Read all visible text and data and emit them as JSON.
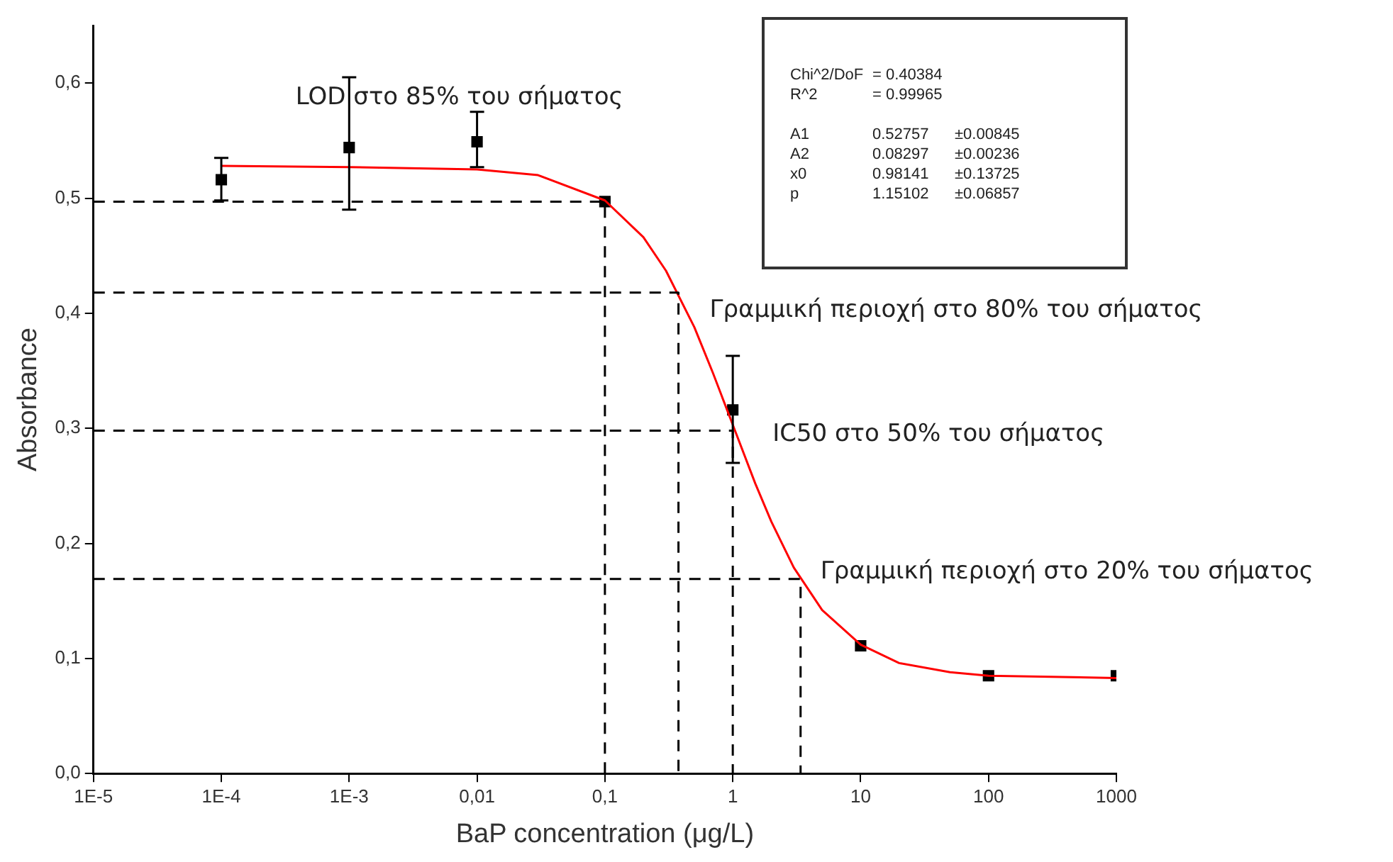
{
  "chart_data": {
    "type": "scatter",
    "xlabel": "BaP concentration (μg/L)",
    "ylabel": "Absorbance",
    "log": "x",
    "grid": false,
    "legend": false,
    "xlim": [
      1e-05,
      1000
    ],
    "ylim": [
      0,
      0.65
    ],
    "xticks": [
      {
        "value": 1e-05,
        "label": "1E-5"
      },
      {
        "value": 0.0001,
        "label": "1E-4"
      },
      {
        "value": 0.001,
        "label": "1E-3"
      },
      {
        "value": 0.01,
        "label": "0,01"
      },
      {
        "value": 0.1,
        "label": "0,1"
      },
      {
        "value": 1,
        "label": "1"
      },
      {
        "value": 10,
        "label": "10"
      },
      {
        "value": 100,
        "label": "100"
      },
      {
        "value": 1000,
        "label": "1000"
      }
    ],
    "yticks": [
      {
        "value": 0,
        "label": "0,0"
      },
      {
        "value": 0.1,
        "label": "0,1"
      },
      {
        "value": 0.2,
        "label": "0,2"
      },
      {
        "value": 0.3,
        "label": "0,3"
      },
      {
        "value": 0.4,
        "label": "0,4"
      },
      {
        "value": 0.5,
        "label": "0,5"
      },
      {
        "value": 0.6,
        "label": "0,6"
      }
    ],
    "series": [
      {
        "type": "line",
        "line_style": "dashed",
        "color": "#000000",
        "x": [
          1e-05,
          0.1,
          0.1
        ],
        "values": [
          0.497,
          0.497,
          0
        ]
      },
      {
        "type": "line",
        "line_style": "dashed",
        "color": "#000000",
        "x": [
          1e-05,
          0.376,
          0.376
        ],
        "values": [
          0.418,
          0.418,
          0
        ]
      },
      {
        "type": "line",
        "line_style": "dashed",
        "color": "#000000",
        "x": [
          1e-05,
          1,
          1
        ],
        "values": [
          0.298,
          0.298,
          0
        ]
      },
      {
        "type": "line",
        "line_style": "dashed",
        "color": "#000000",
        "x": [
          1e-05,
          3.39,
          3.39
        ],
        "values": [
          0.169,
          0.169,
          0
        ]
      },
      {
        "type": "line",
        "line_style": "solid",
        "color": "#ff0000",
        "x": [
          0.0001,
          0.001,
          0.01,
          0.03,
          0.1,
          0.2,
          0.3,
          0.5,
          0.7,
          1,
          1.5,
          2,
          3,
          5,
          10,
          20,
          50,
          100,
          1000
        ],
        "values": [
          0.528,
          0.527,
          0.525,
          0.52,
          0.498,
          0.466,
          0.437,
          0.388,
          0.348,
          0.303,
          0.252,
          0.219,
          0.179,
          0.142,
          0.112,
          0.096,
          0.088,
          0.085,
          0.083
        ]
      },
      {
        "marker": "square",
        "color": "#000000",
        "x": [
          0.0001,
          0.001,
          0.01,
          0.1,
          1,
          10,
          100,
          1000
        ],
        "values": [
          0.516,
          0.544,
          0.549,
          0.497,
          0.316,
          0.111,
          0.085,
          0.085
        ],
        "errors": [
          [
            0.498,
            0.535
          ],
          [
            0.49,
            0.605
          ],
          [
            0.527,
            0.575
          ],
          null,
          [
            0.27,
            0.363
          ],
          null,
          null,
          null
        ]
      }
    ],
    "annotations": [
      "LOD στο 85% του σήματος",
      "Γραμμική περιοχή στο 80% του σήματος",
      "IC50 στο 50% του σήματος",
      "Γραμμική περιοχή στο 20% του σήματος",
      "Chi^2/DoF\t= 0.40384",
      "R^2\t= 0.99965",
      "A1\t0.52757\t±0.00845",
      "A2\t0.08297\t±0.00236",
      "x0\t0.98141\t±0.13725",
      "p\t1.15102\t±0.06857"
    ]
  }
}
